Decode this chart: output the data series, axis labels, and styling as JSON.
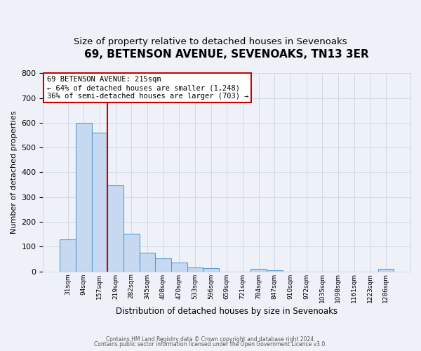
{
  "title": "69, BETENSON AVENUE, SEVENOAKS, TN13 3ER",
  "subtitle": "Size of property relative to detached houses in Sevenoaks",
  "xlabel": "Distribution of detached houses by size in Sevenoaks",
  "ylabel": "Number of detached properties",
  "footer_line1": "Contains HM Land Registry data © Crown copyright and database right 2024.",
  "footer_line2": "Contains public sector information licensed under the Open Government Licence v3.0.",
  "bar_labels": [
    "31sqm",
    "94sqm",
    "157sqm",
    "219sqm",
    "282sqm",
    "345sqm",
    "408sqm",
    "470sqm",
    "533sqm",
    "596sqm",
    "659sqm",
    "721sqm",
    "784sqm",
    "847sqm",
    "910sqm",
    "972sqm",
    "1035sqm",
    "1098sqm",
    "1161sqm",
    "1223sqm",
    "1286sqm"
  ],
  "bar_heights": [
    128,
    600,
    560,
    348,
    152,
    75,
    52,
    35,
    15,
    12,
    0,
    0,
    10,
    5,
    0,
    0,
    0,
    0,
    0,
    0,
    10
  ],
  "bar_color": "#c6d9f0",
  "bar_edge_color": "#5b9bd5",
  "vline_color": "#cc0000",
  "annotation_title": "69 BETENSON AVENUE: 215sqm",
  "annotation_line1": "← 64% of detached houses are smaller (1,248)",
  "annotation_line2": "36% of semi-detached houses are larger (703) →",
  "annotation_box_color": "#ffffff",
  "annotation_box_edge_color": "#cc0000",
  "ylim": [
    0,
    800
  ],
  "yticks": [
    0,
    100,
    200,
    300,
    400,
    500,
    600,
    700,
    800
  ],
  "grid_color": "#d0d8e8",
  "bg_color": "#eef2f8",
  "title_fontsize": 11,
  "subtitle_fontsize": 9.5
}
